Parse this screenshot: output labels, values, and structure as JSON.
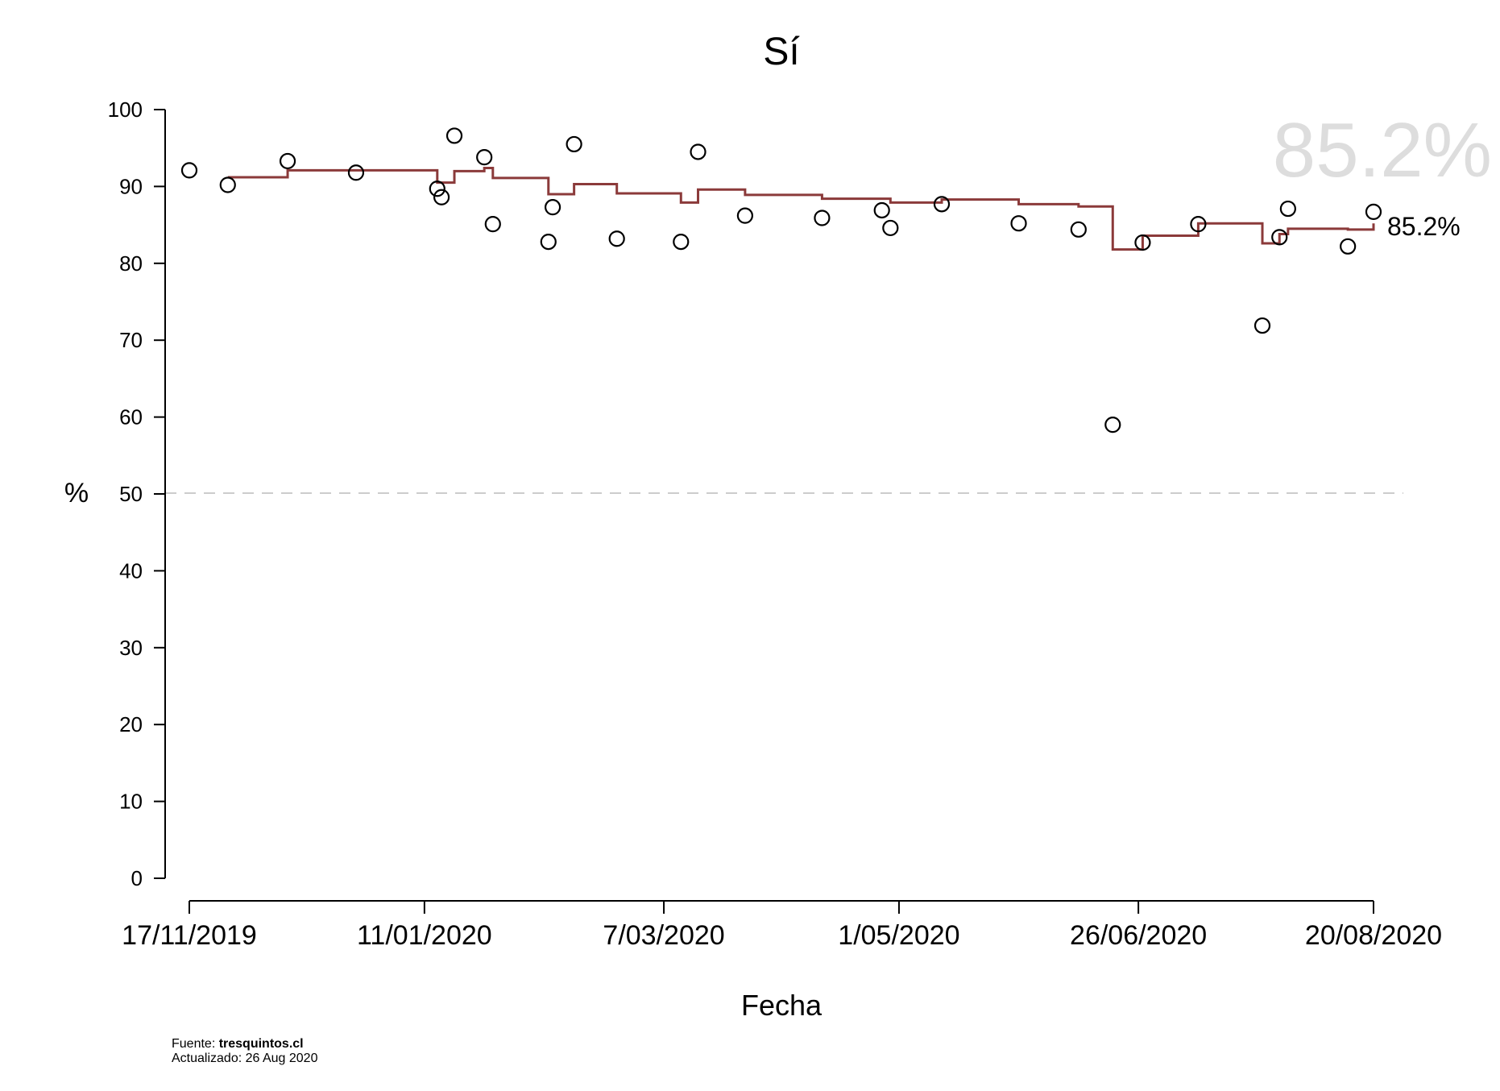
{
  "chart_data": {
    "type": "scatter",
    "title": "Sí",
    "xlabel": "Fecha",
    "ylabel": "%",
    "ylim": [
      0,
      100
    ],
    "yticks": [
      0,
      10,
      20,
      30,
      40,
      50,
      60,
      70,
      80,
      90,
      100
    ],
    "xlim": [
      "2019-11-17",
      "2020-08-20"
    ],
    "xticks": [
      {
        "date": "2019-11-17",
        "label": "17/11/2019"
      },
      {
        "date": "2020-01-11",
        "label": "11/01/2020"
      },
      {
        "date": "2020-03-07",
        "label": "7/03/2020"
      },
      {
        "date": "2020-05-01",
        "label": "1/05/2020"
      },
      {
        "date": "2020-06-26",
        "label": "26/06/2020"
      },
      {
        "date": "2020-08-20",
        "label": "20/08/2020"
      }
    ],
    "reference_line": 50,
    "grid": false,
    "colors": {
      "trend": "#8b3a3a",
      "points": "#000000",
      "reference": "#cccccc",
      "watermark": "#dddddd"
    },
    "points": [
      {
        "x": "2019-11-17",
        "y": 92.1
      },
      {
        "x": "2019-11-26",
        "y": 90.2
      },
      {
        "x": "2019-12-10",
        "y": 93.3
      },
      {
        "x": "2019-12-26",
        "y": 91.8
      },
      {
        "x": "2020-01-14",
        "y": 89.7
      },
      {
        "x": "2020-01-15",
        "y": 88.6
      },
      {
        "x": "2020-01-18",
        "y": 96.6
      },
      {
        "x": "2020-01-25",
        "y": 93.8
      },
      {
        "x": "2020-01-27",
        "y": 85.1
      },
      {
        "x": "2020-02-09",
        "y": 82.8
      },
      {
        "x": "2020-02-10",
        "y": 87.3
      },
      {
        "x": "2020-02-15",
        "y": 95.5
      },
      {
        "x": "2020-02-25",
        "y": 83.2
      },
      {
        "x": "2020-03-11",
        "y": 82.8
      },
      {
        "x": "2020-03-15",
        "y": 94.5
      },
      {
        "x": "2020-03-26",
        "y": 86.2
      },
      {
        "x": "2020-04-13",
        "y": 85.9
      },
      {
        "x": "2020-04-27",
        "y": 86.9
      },
      {
        "x": "2020-04-29",
        "y": 84.6
      },
      {
        "x": "2020-05-11",
        "y": 87.7
      },
      {
        "x": "2020-05-29",
        "y": 85.2
      },
      {
        "x": "2020-06-12",
        "y": 84.4
      },
      {
        "x": "2020-06-20",
        "y": 59.0
      },
      {
        "x": "2020-06-27",
        "y": 82.7
      },
      {
        "x": "2020-07-10",
        "y": 85.1
      },
      {
        "x": "2020-07-25",
        "y": 71.9
      },
      {
        "x": "2020-07-29",
        "y": 83.4
      },
      {
        "x": "2020-07-31",
        "y": 87.1
      },
      {
        "x": "2020-08-14",
        "y": 82.2
      },
      {
        "x": "2020-08-20",
        "y": 86.7
      }
    ],
    "trend_steps": [
      {
        "x": "2019-11-26",
        "y": 91.2
      },
      {
        "x": "2019-12-10",
        "y": 92.1
      },
      {
        "x": "2020-01-14",
        "y": 90.5
      },
      {
        "x": "2020-01-18",
        "y": 92.0
      },
      {
        "x": "2020-01-25",
        "y": 92.4
      },
      {
        "x": "2020-01-27",
        "y": 91.1
      },
      {
        "x": "2020-02-09",
        "y": 89.0
      },
      {
        "x": "2020-02-15",
        "y": 90.3
      },
      {
        "x": "2020-02-25",
        "y": 89.1
      },
      {
        "x": "2020-03-11",
        "y": 87.9
      },
      {
        "x": "2020-03-15",
        "y": 89.6
      },
      {
        "x": "2020-03-26",
        "y": 88.9
      },
      {
        "x": "2020-04-13",
        "y": 88.4
      },
      {
        "x": "2020-04-29",
        "y": 87.9
      },
      {
        "x": "2020-05-11",
        "y": 88.3
      },
      {
        "x": "2020-05-29",
        "y": 87.7
      },
      {
        "x": "2020-06-12",
        "y": 87.4
      },
      {
        "x": "2020-06-20",
        "y": 81.8
      },
      {
        "x": "2020-06-27",
        "y": 83.6
      },
      {
        "x": "2020-07-10",
        "y": 85.2
      },
      {
        "x": "2020-07-25",
        "y": 82.6
      },
      {
        "x": "2020-07-29",
        "y": 83.8
      },
      {
        "x": "2020-07-31",
        "y": 84.5
      },
      {
        "x": "2020-08-14",
        "y": 84.4
      },
      {
        "x": "2020-08-20",
        "y": 85.2
      }
    ],
    "current_value_label": "85.2%",
    "watermark_label": "85.2%"
  },
  "footer": {
    "source_prefix": "Fuente: ",
    "source_name": "tresquintos.cl",
    "updated": "Actualizado: 26 Aug 2020"
  }
}
